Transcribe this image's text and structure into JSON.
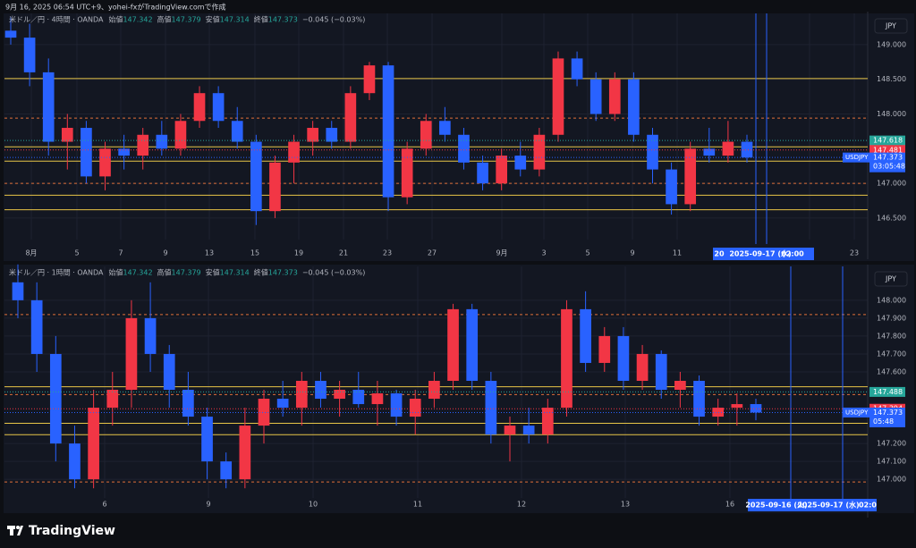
{
  "header": "9月 16, 2025 06:54 UTC+9、yohei-fxがTradingView.comで作成",
  "footer": "TradingView",
  "chart_data": [
    {
      "type": "candlestick",
      "legend": "米ドル／円 · 4時間 · OANDA",
      "info": [
        "始値",
        "147.342",
        "高値",
        "147.379",
        "安値",
        "147.314",
        "終値",
        "147.373",
        "−0.045 (−0.03%)"
      ],
      "currency": "JPY",
      "up_color": "#f23645",
      "down_color": "#2962ff",
      "open": [
        149.2,
        149.1,
        148.6,
        147.6,
        147.8,
        147.1,
        147.5,
        147.4,
        147.7,
        147.5,
        147.9,
        148.3,
        147.9,
        147.6,
        146.6,
        147.3,
        147.6,
        147.8,
        147.6,
        148.3,
        148.7,
        146.8,
        147.5,
        147.9,
        147.7,
        147.3,
        147.0,
        147.4,
        147.2,
        147.7,
        148.8,
        148.5,
        148.0,
        148.5,
        147.7,
        147.2,
        146.7,
        147.5,
        147.4,
        147.6
      ],
      "high": [
        149.4,
        149.3,
        148.8,
        148.0,
        147.9,
        147.6,
        147.7,
        147.8,
        147.9,
        148.0,
        148.4,
        148.4,
        148.1,
        147.7,
        147.4,
        147.7,
        147.9,
        147.9,
        148.4,
        148.75,
        148.75,
        147.6,
        148.0,
        148.1,
        147.8,
        147.4,
        147.5,
        147.6,
        147.8,
        148.9,
        148.9,
        148.6,
        148.6,
        148.6,
        147.8,
        147.3,
        147.6,
        147.8,
        147.9,
        147.7
      ],
      "low": [
        149.0,
        148.4,
        147.4,
        147.2,
        147.0,
        146.9,
        147.2,
        147.2,
        147.4,
        147.4,
        147.8,
        147.8,
        147.5,
        146.4,
        146.5,
        147.0,
        147.4,
        147.5,
        147.5,
        148.2,
        146.6,
        146.7,
        147.4,
        147.6,
        147.2,
        146.9,
        146.9,
        147.1,
        147.1,
        147.6,
        148.4,
        147.9,
        147.9,
        147.6,
        147.0,
        146.55,
        146.6,
        147.3,
        147.3,
        147.3
      ],
      "close": [
        149.1,
        148.6,
        147.6,
        147.8,
        147.1,
        147.5,
        147.4,
        147.7,
        147.5,
        147.9,
        148.3,
        147.9,
        147.6,
        146.6,
        147.3,
        147.6,
        147.8,
        147.6,
        148.3,
        148.7,
        146.8,
        147.5,
        147.9,
        147.7,
        147.3,
        147.0,
        147.4,
        147.2,
        147.7,
        148.8,
        148.5,
        148.0,
        148.5,
        147.7,
        147.2,
        146.7,
        147.5,
        147.4,
        147.6,
        147.373
      ],
      "ylim": [
        146.19,
        149.449
      ],
      "yticks": [
        {
          "value": 149,
          "label": "149.000"
        },
        {
          "value": 148.5,
          "label": "148.500"
        },
        {
          "value": 148,
          "label": "148.000"
        },
        {
          "value": 147,
          "label": "147.000"
        },
        {
          "value": 146.5,
          "label": "146.500"
        }
      ],
      "xlabels": [
        "8月",
        "5",
        "7",
        "9",
        "13",
        "15",
        "19",
        "21",
        "23",
        "27",
        "9月",
        "3",
        "5",
        "9",
        "11",
        "19",
        "23"
      ],
      "levels": [
        {
          "value": 148.51,
          "color": "#e8c547"
        },
        {
          "value": 147.526,
          "color": "#e8c547"
        },
        {
          "value": 147.32,
          "color": "#e8c547"
        },
        {
          "value": 146.83,
          "color": "#e8c547"
        },
        {
          "value": 146.62,
          "color": "#e8c547"
        },
        {
          "value": 147.94,
          "color": "#e0703a",
          "dashed": true
        },
        {
          "value": 147.0,
          "color": "#e0703a",
          "dashed": true
        }
      ],
      "price_labels": [
        {
          "value": 147.618,
          "color": "#26a69a"
        },
        {
          "value": 147.481,
          "color": "#f23645"
        },
        {
          "value": 147.373,
          "color": "#2962ff",
          "symbol": "USDJPY",
          "timer": "03:05:48"
        }
      ],
      "date_labels": [
        "20",
        "2025-09-17 (水)",
        "02:00"
      ]
    },
    {
      "type": "candlestick",
      "legend": "米ドル／円 · 1時間 · OANDA",
      "info": [
        "始値",
        "147.342",
        "高値",
        "147.379",
        "安値",
        "147.314",
        "終値",
        "147.373",
        "−0.045 (−0.03%)"
      ],
      "currency": "JPY",
      "up_color": "#f23645",
      "down_color": "#2962ff",
      "open": [
        148.1,
        148.0,
        147.7,
        147.2,
        147.0,
        147.4,
        147.5,
        147.9,
        147.7,
        147.5,
        147.35,
        147.1,
        147.0,
        147.3,
        147.45,
        147.4,
        147.55,
        147.45,
        147.5,
        147.42,
        147.48,
        147.35,
        147.45,
        147.55,
        147.95,
        147.55,
        147.25,
        147.3,
        147.25,
        147.4,
        147.95,
        147.65,
        147.8,
        147.55,
        147.7,
        147.5,
        147.55,
        147.35,
        147.4,
        147.42
      ],
      "high": [
        148.2,
        148.1,
        147.8,
        147.3,
        147.5,
        147.6,
        148.0,
        148.1,
        147.75,
        147.6,
        147.4,
        147.15,
        147.4,
        147.5,
        147.55,
        147.6,
        147.6,
        147.55,
        147.6,
        147.55,
        147.5,
        147.5,
        147.6,
        147.98,
        147.98,
        147.6,
        147.35,
        147.4,
        147.45,
        148.0,
        148.05,
        147.85,
        147.85,
        147.75,
        147.72,
        147.6,
        147.58,
        147.45,
        147.48,
        147.45
      ],
      "low": [
        147.9,
        147.6,
        147.1,
        146.95,
        146.95,
        147.3,
        147.4,
        147.6,
        147.4,
        147.3,
        147.0,
        146.95,
        146.95,
        147.2,
        147.35,
        147.3,
        147.4,
        147.35,
        147.4,
        147.3,
        147.3,
        147.25,
        147.4,
        147.5,
        147.5,
        147.2,
        147.1,
        147.2,
        147.2,
        147.35,
        147.6,
        147.6,
        147.5,
        147.5,
        147.45,
        147.4,
        147.3,
        147.3,
        147.3,
        147.33
      ],
      "close": [
        148.0,
        147.7,
        147.2,
        147.0,
        147.4,
        147.5,
        147.9,
        147.7,
        147.5,
        147.35,
        147.1,
        147.0,
        147.3,
        147.45,
        147.4,
        147.55,
        147.45,
        147.5,
        147.42,
        147.48,
        147.35,
        147.45,
        147.55,
        147.95,
        147.55,
        147.25,
        147.3,
        147.25,
        147.4,
        147.95,
        147.65,
        147.8,
        147.55,
        147.7,
        147.5,
        147.55,
        147.35,
        147.4,
        147.42,
        147.373
      ],
      "ylim": [
        146.896,
        148.189
      ],
      "yticks": [
        {
          "value": 148,
          "label": "148.000"
        },
        {
          "value": 147.9,
          "label": "147.900"
        },
        {
          "value": 147.8,
          "label": "147.800"
        },
        {
          "value": 147.7,
          "label": "147.700"
        },
        {
          "value": 147.6,
          "label": "147.600"
        },
        {
          "value": 147.2,
          "label": "147.200"
        },
        {
          "value": 147.1,
          "label": "147.100"
        },
        {
          "value": 147,
          "label": "147.000"
        }
      ],
      "xlabels": [
        "6",
        "9",
        "10",
        "11",
        "12",
        "13",
        "16"
      ],
      "levels": [
        {
          "value": 147.517,
          "color": "#e8c547"
        },
        {
          "value": 147.313,
          "color": "#e8c547"
        },
        {
          "value": 147.249,
          "color": "#e8c547"
        },
        {
          "value": 147.92,
          "color": "#e0703a",
          "dashed": true
        },
        {
          "value": 147.473,
          "color": "#e0703a",
          "dashed": true
        },
        {
          "value": 146.985,
          "color": "#e0703a",
          "dashed": true
        }
      ],
      "price_labels": [
        {
          "value": 147.488,
          "color": "#26a69a"
        },
        {
          "value": 147.394,
          "color": "#f23645"
        },
        {
          "value": 147.373,
          "color": "#2962ff",
          "symbol": "USDJPY",
          "timer": "05:48"
        }
      ],
      "date_labels": [
        "2025-09-16 (火)",
        "2025-09-17 (水)",
        "02:0"
      ]
    }
  ]
}
